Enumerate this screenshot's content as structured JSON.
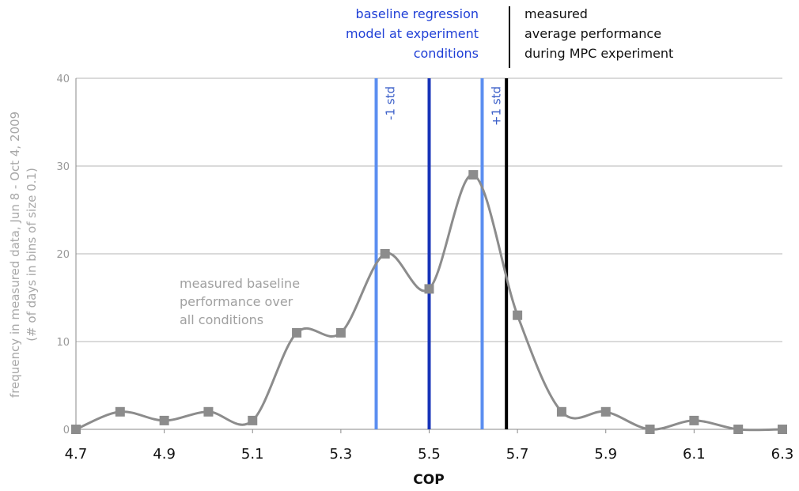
{
  "chart_data": {
    "type": "line",
    "x": [
      4.7,
      4.8,
      4.9,
      5.0,
      5.1,
      5.2,
      5.3,
      5.4,
      5.5,
      5.6,
      5.7,
      5.8,
      5.9,
      6.0,
      6.1,
      6.2,
      6.3
    ],
    "series": [
      {
        "values": [
          0,
          2,
          1,
          2,
          1,
          11,
          11,
          20,
          16,
          29,
          13,
          2,
          2,
          0,
          1,
          0,
          0
        ],
        "color": "#8c8c8c"
      }
    ],
    "xlim": [
      4.7,
      6.3
    ],
    "ylim": [
      0,
      40
    ],
    "x_ticks": [
      "4.7",
      "4.9",
      "5.1",
      "5.3",
      "5.5",
      "5.7",
      "5.9",
      "6.1",
      "6.3"
    ],
    "y_ticks": [
      "0",
      "10",
      "20",
      "30",
      "40"
    ],
    "xlabel": "COP",
    "ylabel_line1": "frequency in measured data, Jun 8 - Oct 4, 2009",
    "ylabel_line2": "(# of days in bins of size 0.1)",
    "grid": "horizontal",
    "reference_lines": [
      {
        "x": 5.38,
        "label": "-1 std",
        "color": "#5b8ef0"
      },
      {
        "x": 5.5,
        "label": "",
        "color": "#1733b8"
      },
      {
        "x": 5.62,
        "label": "+1 std",
        "color": "#5b8ef0"
      },
      {
        "x": 5.675,
        "label": "",
        "color": "#000000"
      }
    ],
    "annotations": {
      "baseline_model": [
        "baseline regression",
        "model at experiment",
        "conditions"
      ],
      "measured_mpc": [
        "measured",
        "average performance",
        "during MPC experiment"
      ],
      "measured_baseline": [
        "measured baseline",
        "performance over",
        "all conditions"
      ]
    }
  }
}
